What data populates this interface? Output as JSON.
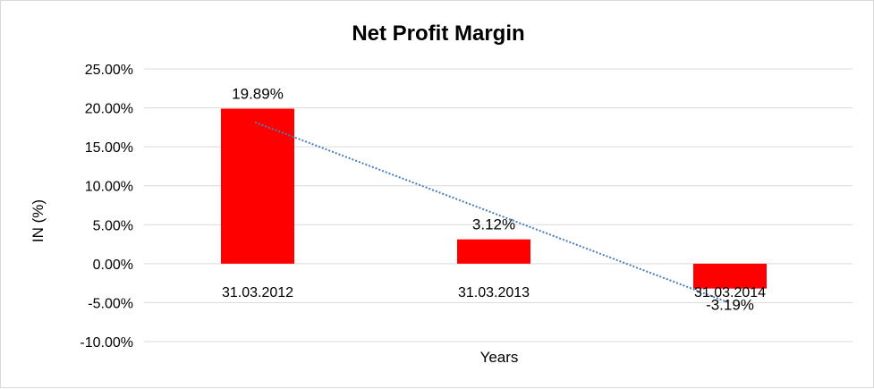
{
  "chart_data": {
    "type": "bar",
    "title": "Net Profit Margin",
    "xlabel": "Years",
    "ylabel": "IN (%)",
    "categories": [
      "31.03.2012",
      "31.03.2013",
      "31.03.2014"
    ],
    "series": [
      {
        "values": [
          19.89,
          3.12,
          -3.19
        ],
        "data_labels": [
          "19.89%",
          "3.12%",
          "-3.19%"
        ],
        "color": "#ff0000"
      }
    ],
    "trendline": {
      "type": "linear",
      "style": "dotted",
      "color": "#4a7ebb"
    },
    "ylim": [
      -10,
      25
    ],
    "ytick_step": 5,
    "yticks": [
      "25.00%",
      "20.00%",
      "15.00%",
      "10.00%",
      "5.00%",
      "0.00%",
      "-5.00%",
      "-10.00%"
    ],
    "grid": true,
    "legend": "none"
  }
}
